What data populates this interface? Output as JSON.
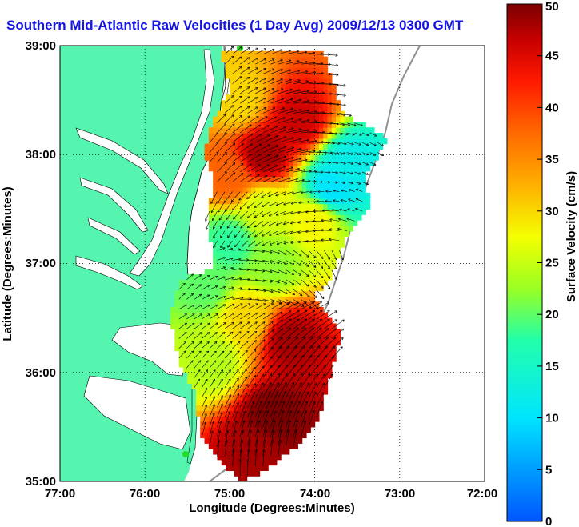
{
  "title": "Southern Mid-Atlantic Raw Velocities (1 Day Avg) 2009/12/13 0300 GMT",
  "axes": {
    "xlabel": "Longitude (Degrees:Minutes)",
    "ylabel": "Latitude (Degrees:Minutes)",
    "x_ticks": [
      "77:00",
      "76:00",
      "75:00",
      "74:00",
      "73:00",
      "72:00"
    ],
    "y_ticks": [
      "39:00",
      "38:00",
      "37:00",
      "36:00",
      "35:00"
    ],
    "xlim": [
      -77,
      -72
    ],
    "ylim": [
      35,
      39
    ]
  },
  "colorbar": {
    "label": "Surface Velocity (cm/s)",
    "ticks": [
      "0",
      "5",
      "10",
      "15",
      "20",
      "25",
      "30",
      "35",
      "40",
      "45",
      "50"
    ],
    "range": [
      0,
      50
    ]
  },
  "colors": {
    "land": "#55f5b0",
    "title": "#1414e6",
    "vector": "#000000"
  },
  "chart_data": {
    "type": "heatmap",
    "title": "Southern Mid-Atlantic Raw Velocities (1 Day Avg) 2009/12/13 0300 GMT",
    "xlabel": "Longitude (Degrees:Minutes)",
    "ylabel": "Latitude (Degrees:Minutes)",
    "colorbar_label": "Surface Velocity (cm/s)",
    "xlim": [
      -77,
      -72
    ],
    "ylim": [
      35,
      39
    ],
    "grid": true,
    "speed_regions": [
      {
        "lon": -74.6,
        "lat": 38.0,
        "speed": 48
      },
      {
        "lon": -74.2,
        "lat": 38.3,
        "speed": 46
      },
      {
        "lon": -74.9,
        "lat": 38.5,
        "speed": 30
      },
      {
        "lon": -73.8,
        "lat": 37.7,
        "speed": 10
      },
      {
        "lon": -73.6,
        "lat": 37.9,
        "speed": 12
      },
      {
        "lon": -74.0,
        "lat": 37.4,
        "speed": 28
      },
      {
        "lon": -74.6,
        "lat": 37.5,
        "speed": 26
      },
      {
        "lon": -74.5,
        "lat": 37.0,
        "speed": 22
      },
      {
        "lon": -75.0,
        "lat": 37.2,
        "speed": 18
      },
      {
        "lon": -75.0,
        "lat": 37.8,
        "speed": 38
      },
      {
        "lon": -74.8,
        "lat": 36.5,
        "speed": 30
      },
      {
        "lon": -74.3,
        "lat": 36.3,
        "speed": 48
      },
      {
        "lon": -74.5,
        "lat": 35.6,
        "speed": 50
      },
      {
        "lon": -74.7,
        "lat": 35.3,
        "speed": 48
      },
      {
        "lon": -75.2,
        "lat": 36.1,
        "speed": 24
      },
      {
        "lon": -75.3,
        "lat": 36.8,
        "speed": 20
      }
    ]
  }
}
